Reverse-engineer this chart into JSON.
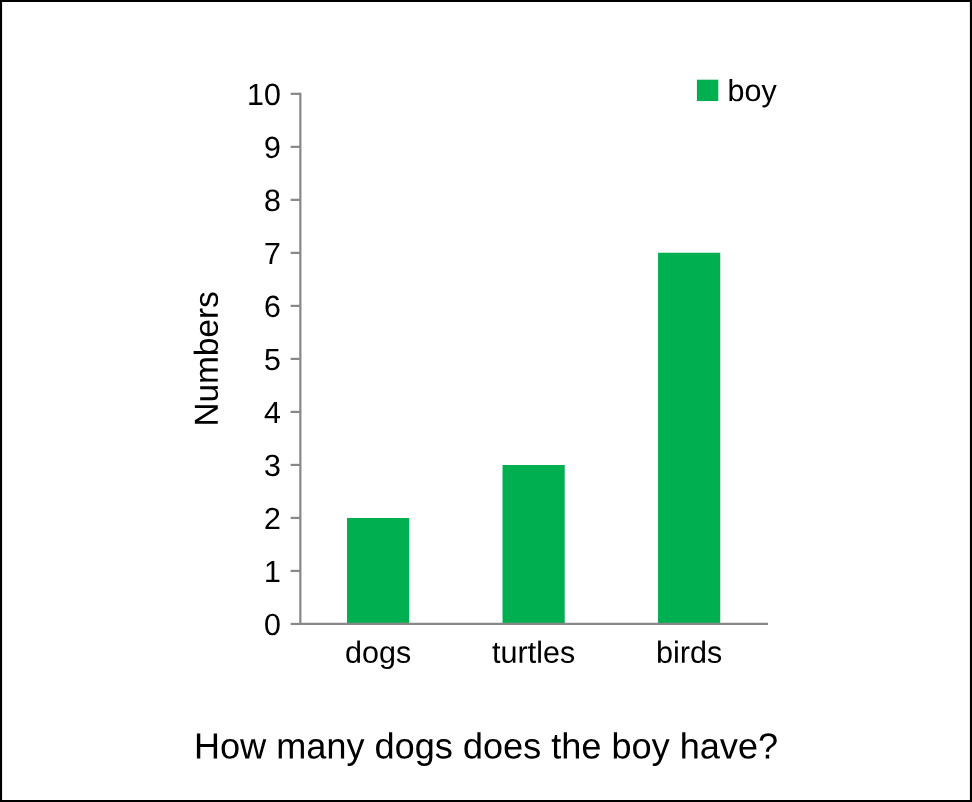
{
  "chart_data": {
    "type": "bar",
    "ylabel": "Numbers",
    "categories": [
      "dogs",
      "turtles",
      "birds"
    ],
    "series": [
      {
        "name": "boy",
        "color": "#00b050",
        "values": [
          2,
          3,
          7
        ]
      }
    ],
    "ylim": [
      0,
      10
    ],
    "yticks": [
      0,
      1,
      2,
      3,
      4,
      5,
      6,
      7,
      8,
      9,
      10
    ],
    "legend": "top right",
    "grid": false,
    "annotations": [
      "How many dogs does the boy have?"
    ]
  }
}
